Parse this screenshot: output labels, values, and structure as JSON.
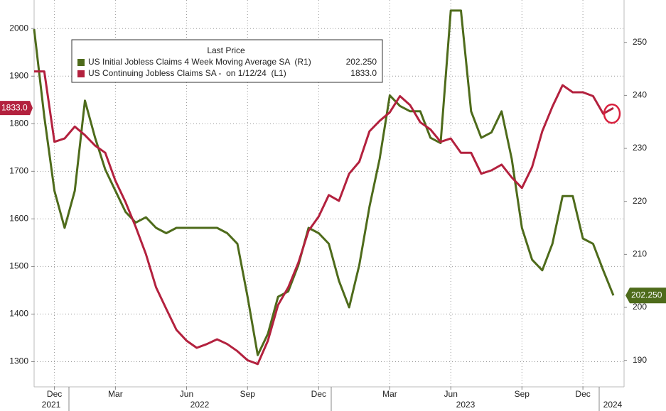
{
  "chart_data": {
    "type": "line",
    "legend_title": "Last Price",
    "categories": [
      null,
      null,
      "Dec",
      null,
      null,
      null,
      null,
      null,
      "Mar",
      null,
      null,
      null,
      null,
      null,
      null,
      "Jun",
      null,
      null,
      null,
      null,
      null,
      "Sep",
      null,
      null,
      null,
      null,
      null,
      null,
      "Dec",
      null,
      null,
      null,
      null,
      null,
      null,
      "Mar",
      null,
      null,
      null,
      null,
      null,
      "Jun",
      null,
      null,
      null,
      null,
      null,
      null,
      "Sep",
      null,
      null,
      null,
      null,
      null,
      "Dec",
      null,
      null,
      null
    ],
    "years": [
      "2021",
      "2022",
      "2023",
      "2024"
    ],
    "series": [
      {
        "name": "US Initial Jobless Claims 4 Week Moving Average SA  (R1)",
        "color": "#4e6b1b",
        "axis": "y2",
        "last_label": "202.250",
        "values": [
          252.5,
          236,
          222,
          215,
          222,
          239,
          232,
          226,
          222,
          218,
          216,
          217,
          215,
          214,
          215,
          215,
          215,
          215,
          215,
          214,
          212,
          202,
          191,
          195,
          202,
          203,
          208,
          215,
          214,
          212,
          205,
          200,
          208,
          219,
          228,
          240,
          238,
          237,
          237,
          232,
          231,
          256,
          256,
          237,
          232,
          233,
          237,
          228,
          215,
          209,
          207,
          212,
          221,
          221,
          213,
          212,
          207,
          202.25
        ]
      },
      {
        "name": "US Continuing Jobless Claims SA -  on 1/12/24  (L1)",
        "color": "#b3213e",
        "axis": "y",
        "last_label": "1833.0",
        "values": [
          1910,
          1910,
          1762,
          1769,
          1794,
          1776,
          1754,
          1739,
          1680,
          1635,
          1583,
          1526,
          1456,
          1411,
          1367,
          1344,
          1329,
          1337,
          1347,
          1337,
          1322,
          1303,
          1295,
          1344,
          1419,
          1456,
          1508,
          1575,
          1605,
          1650,
          1638,
          1695,
          1720,
          1784,
          1806,
          1824,
          1858,
          1839,
          1803,
          1788,
          1762,
          1769,
          1739,
          1739,
          1695,
          1702,
          1714,
          1687,
          1665,
          1709,
          1784,
          1836,
          1881,
          1866,
          1866,
          1858,
          1821,
          1833
        ]
      }
    ],
    "ylim": [
      1247,
      2060
    ],
    "yticks": [
      1300,
      1400,
      1500,
      1600,
      1700,
      1800,
      1900,
      2000
    ],
    "y2lim": [
      185,
      258
    ],
    "y2ticks": [
      190,
      200,
      210,
      220,
      230,
      240,
      250
    ],
    "grid": true
  }
}
